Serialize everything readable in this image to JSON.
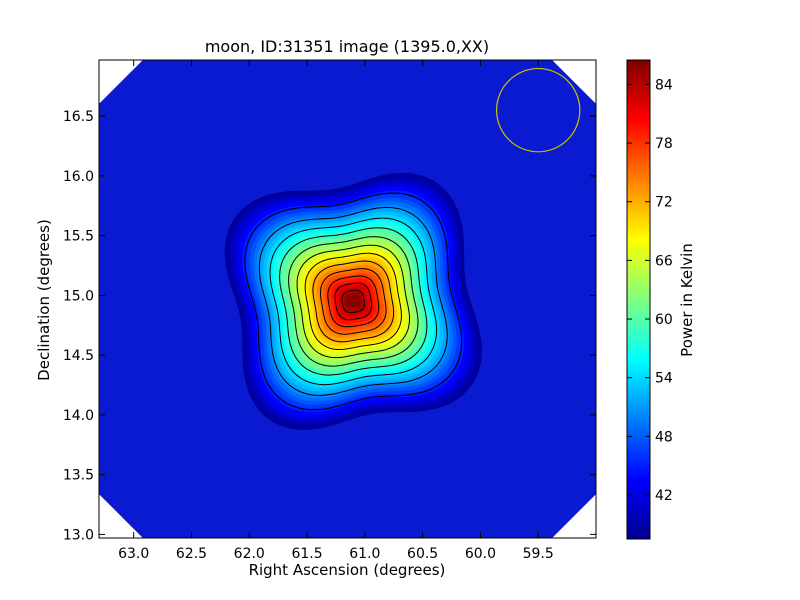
{
  "chart_data": {
    "type": "heatmap",
    "title": "moon, ID:31351 image (1395.0,XX)",
    "xlabel": "Right Ascension (degrees)",
    "ylabel": "Declination (degrees)",
    "xlim": [
      63.3,
      59.0
    ],
    "ylim": [
      12.97,
      16.97
    ],
    "x_axis_inverted": true,
    "x_ticks": [
      "63.0",
      "62.5",
      "62.0",
      "61.5",
      "61.0",
      "60.5",
      "60.0",
      "59.5"
    ],
    "y_ticks": [
      "13.0",
      "13.5",
      "14.0",
      "14.5",
      "15.0",
      "15.5",
      "16.0",
      "16.5"
    ],
    "colorbar": {
      "label": "Power in Kelvin",
      "range": [
        37.5,
        86.5
      ],
      "ticks": [
        "42",
        "48",
        "54",
        "60",
        "66",
        "72",
        "78",
        "84"
      ],
      "colormap": "jet"
    },
    "source": {
      "center_ra": 61.1,
      "center_dec": 14.95,
      "peak_kelvin": 86,
      "background_kelvin": 39
    },
    "contour_count": 12,
    "beam_circle": {
      "center_ra": 59.5,
      "center_dec": 16.55,
      "radius_deg": 0.36,
      "color": "#c8c800"
    },
    "masked_corners": true
  }
}
